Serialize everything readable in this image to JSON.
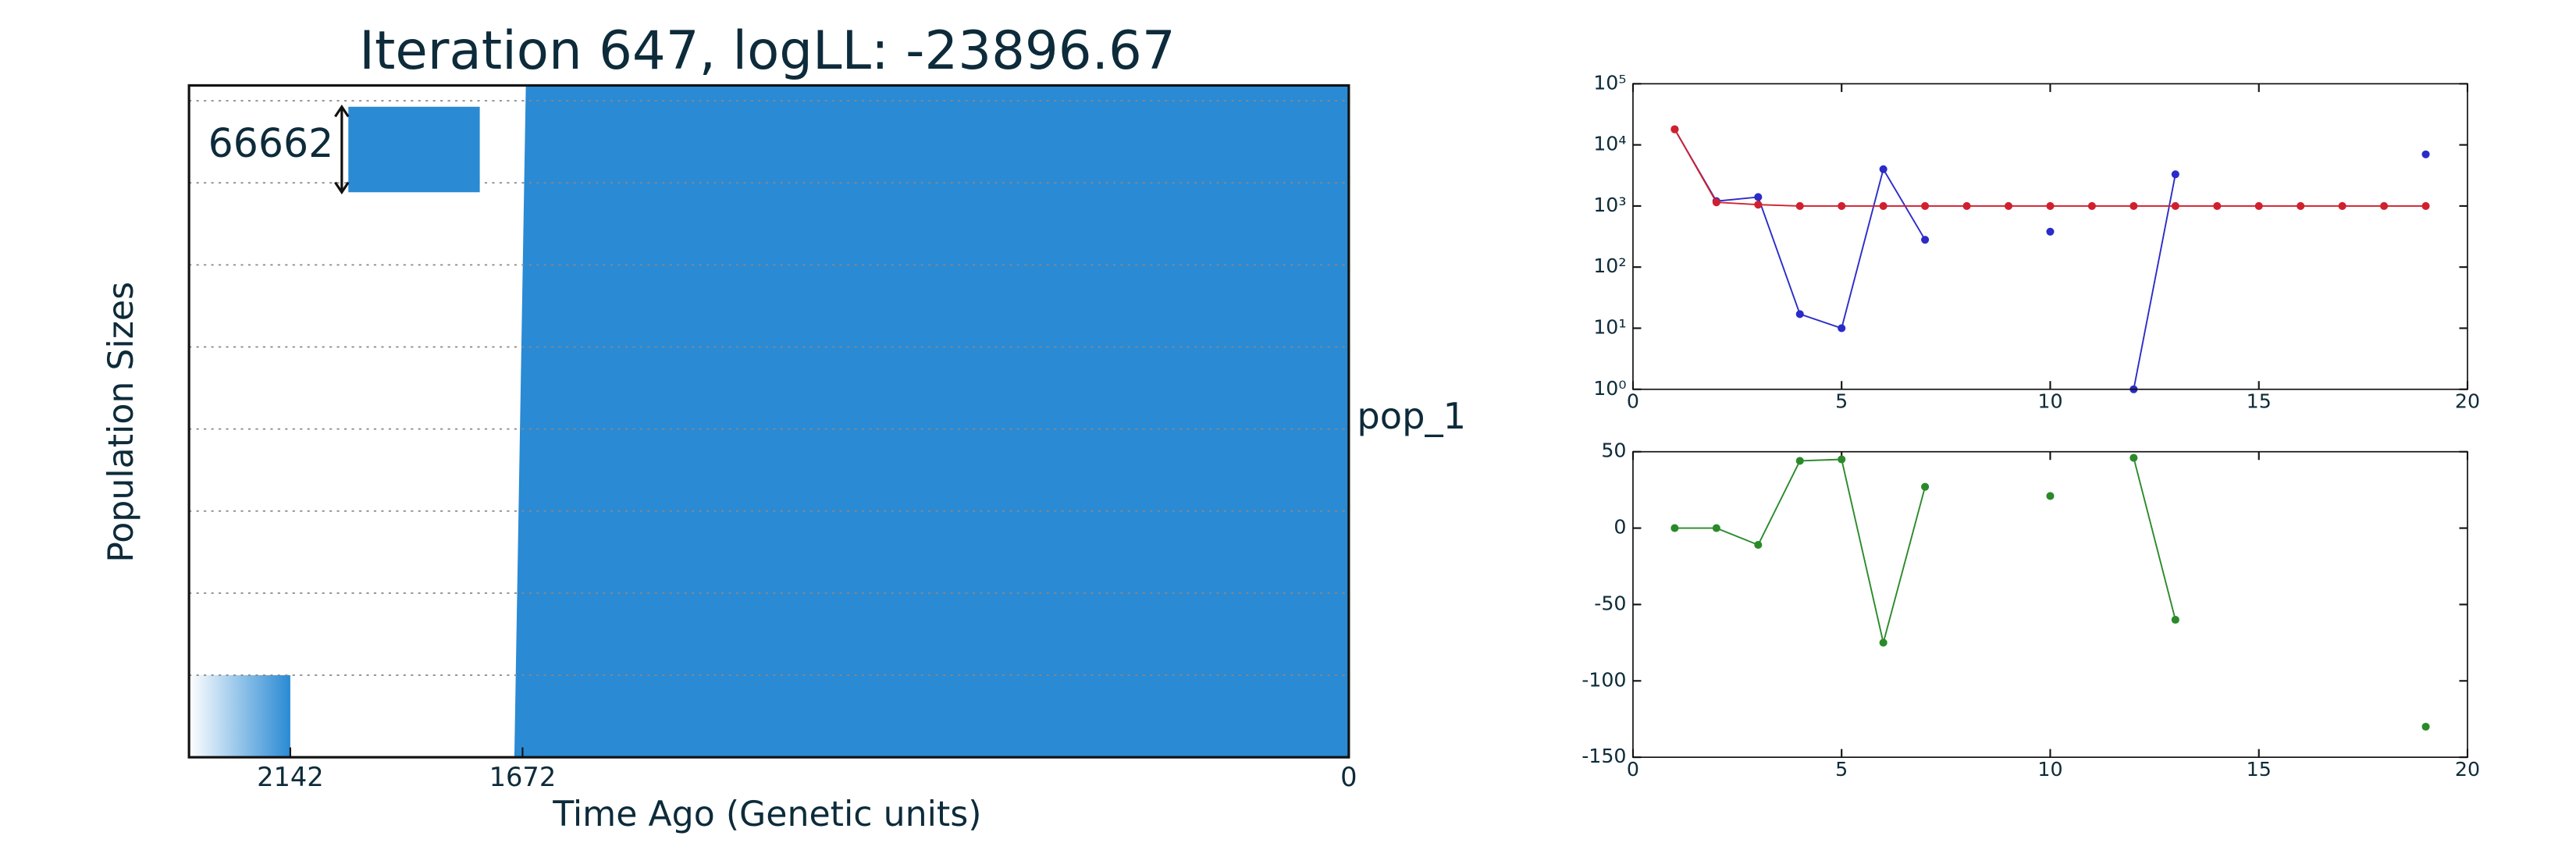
{
  "chart_data": [
    {
      "type": "demography",
      "title": "Iteration 647, logLL:  -23896.67",
      "ylabel": "Population Sizes",
      "xlabel": "Time Ago (Genetic units)",
      "xlim": [
        2347,
        0
      ],
      "xticks": [
        2142,
        1672,
        0
      ],
      "ylim": [
        0,
        524000
      ],
      "ygrid": [
        64000,
        128000,
        192000,
        256000,
        320000,
        384000,
        448000,
        512000
      ],
      "scale_bar": 66662,
      "pop_label": "pop_1",
      "color": "#2a8ad4",
      "blocks": [
        {
          "x0": 2347,
          "x1": 2142,
          "size": 64000,
          "gradient": true
        },
        {
          "x0": 1672,
          "x1": 0,
          "size": 524000,
          "gradient": false
        }
      ]
    },
    {
      "type": "line",
      "log_y": true,
      "x": [
        1,
        2,
        3,
        4,
        5,
        6,
        7,
        8,
        9,
        10,
        11,
        12,
        13,
        14,
        15,
        16,
        17,
        18,
        19
      ],
      "xlim": [
        0,
        20
      ],
      "xticks": [
        0,
        5,
        10,
        15,
        20
      ],
      "ylim": [
        1,
        100000
      ],
      "yticks": [
        {
          "value": 1,
          "label": "10⁰"
        },
        {
          "value": 10,
          "label": "10¹"
        },
        {
          "value": 100,
          "label": "10²"
        },
        {
          "value": 1000,
          "label": "10³"
        },
        {
          "value": 10000,
          "label": "10⁴"
        },
        {
          "value": 100000,
          "label": "10⁵"
        }
      ],
      "series": [
        {
          "name": "blue",
          "color": "#2b2bc8",
          "values": [
            18000,
            1200,
            1400,
            17,
            10,
            4000,
            280,
            null,
            null,
            380,
            null,
            1,
            3300,
            null,
            null,
            null,
            null,
            null,
            7000
          ]
        },
        {
          "name": "red",
          "color": "#d0202e",
          "values": [
            18000,
            1150,
            1050,
            1000,
            1000,
            1000,
            1000,
            1000,
            1000,
            1000,
            1000,
            1000,
            1000,
            1000,
            1000,
            1000,
            1000,
            1000,
            1000
          ]
        }
      ]
    },
    {
      "type": "line",
      "log_y": false,
      "x": [
        1,
        2,
        3,
        4,
        5,
        6,
        7,
        8,
        9,
        10,
        11,
        12,
        13,
        14,
        15,
        16,
        17,
        18,
        19
      ],
      "xlim": [
        0,
        20
      ],
      "xticks": [
        0,
        5,
        10,
        15,
        20
      ],
      "ylim": [
        -150,
        50
      ],
      "yticks": [
        -150,
        -100,
        -50,
        0,
        50
      ],
      "series": [
        {
          "name": "green",
          "color": "#2a8a2a",
          "values": [
            0,
            0,
            -11,
            44,
            45,
            -75,
            27,
            null,
            null,
            21,
            null,
            46,
            -60,
            null,
            null,
            null,
            null,
            null,
            -130
          ]
        }
      ]
    }
  ]
}
